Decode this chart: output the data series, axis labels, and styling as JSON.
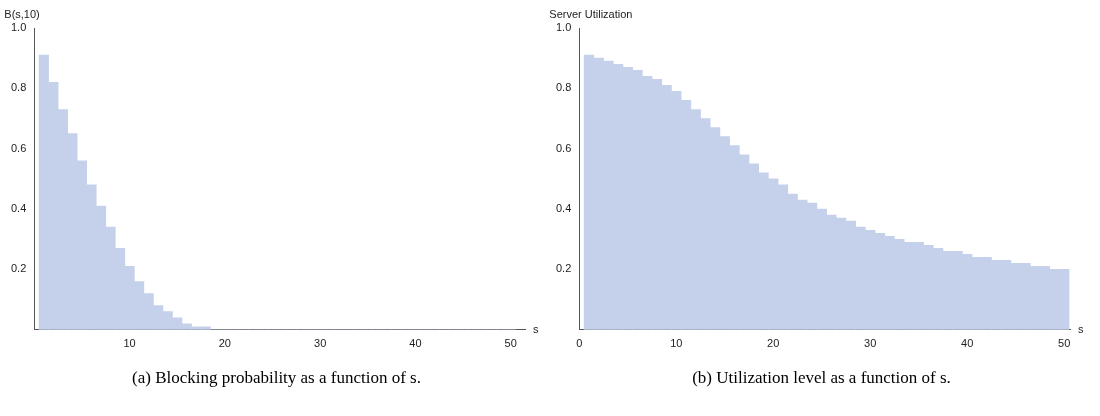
{
  "chart_data": [
    {
      "type": "histogram",
      "xlabel": "s",
      "ylabel": "B(s,10)",
      "color": "#c5d1ea",
      "grid": false,
      "legend": false,
      "bins": [
        0.5,
        1.5,
        2.5,
        3.5,
        4.5,
        5.5,
        6.5,
        7.5,
        8.5,
        9.5,
        10.5,
        11.5,
        12.5,
        13.5,
        14.5,
        15.5,
        16.5,
        17.5,
        18.5,
        19.5,
        20.5,
        21.5,
        22.5,
        23.5,
        24.5,
        25.5,
        26.5,
        27.5,
        28.5,
        29.5,
        30.5,
        31.5,
        32.5,
        33.5,
        34.5,
        35.5,
        36.5,
        37.5,
        38.5,
        39.5,
        40.5,
        41.5,
        42.5,
        43.5,
        44.5,
        45.5,
        46.5,
        47.5,
        48.5,
        49.5,
        50.5
      ],
      "values": [
        0.91,
        0.82,
        0.73,
        0.65,
        0.56,
        0.48,
        0.41,
        0.34,
        0.27,
        0.21,
        0.16,
        0.12,
        0.08,
        0.06,
        0.04,
        0.02,
        0.01,
        0.01,
        0,
        0,
        0,
        0,
        0,
        0,
        0,
        0,
        0,
        0,
        0,
        0,
        0,
        0,
        0,
        0,
        0,
        0,
        0,
        0,
        0,
        0,
        0,
        0,
        0,
        0,
        0,
        0,
        0,
        0,
        0,
        0
      ],
      "xlim": [
        0,
        51.5
      ],
      "xticks": [
        10,
        20,
        30,
        40,
        50
      ],
      "ylim": [
        0,
        1.0
      ],
      "yticks": [
        0.2,
        0.4,
        0.6,
        0.8,
        {
          "value": 1.0,
          "label": "1.0"
        }
      ],
      "annotations": [
        "(a) Blocking probability as a function of s."
      ]
    },
    {
      "type": "histogram",
      "xlabel": "s",
      "ylabel": "Server Utilization",
      "color": "#c5d1ea",
      "grid": false,
      "legend": false,
      "bins": [
        0.5,
        1.5,
        2.5,
        3.5,
        4.5,
        5.5,
        6.5,
        7.5,
        8.5,
        9.5,
        10.5,
        11.5,
        12.5,
        13.5,
        14.5,
        15.5,
        16.5,
        17.5,
        18.5,
        19.5,
        20.5,
        21.5,
        22.5,
        23.5,
        24.5,
        25.5,
        26.5,
        27.5,
        28.5,
        29.5,
        30.5,
        31.5,
        32.5,
        33.5,
        34.5,
        35.5,
        36.5,
        37.5,
        38.5,
        39.5,
        40.5,
        41.5,
        42.5,
        43.5,
        44.5,
        45.5,
        46.5,
        47.5,
        48.5,
        49.5,
        50.5
      ],
      "values": [
        0.91,
        0.9,
        0.89,
        0.88,
        0.87,
        0.86,
        0.84,
        0.83,
        0.81,
        0.79,
        0.76,
        0.73,
        0.7,
        0.67,
        0.64,
        0.61,
        0.58,
        0.55,
        0.52,
        0.5,
        0.48,
        0.45,
        0.43,
        0.42,
        0.4,
        0.38,
        0.37,
        0.36,
        0.34,
        0.33,
        0.32,
        0.31,
        0.3,
        0.29,
        0.29,
        0.28,
        0.27,
        0.26,
        0.26,
        0.25,
        0.24,
        0.24,
        0.23,
        0.23,
        0.22,
        0.22,
        0.21,
        0.21,
        0.2,
        0.2
      ],
      "xlim": [
        0,
        50.6
      ],
      "xticks": [
        0,
        10,
        20,
        30,
        40,
        50
      ],
      "ylim": [
        0,
        1.0
      ],
      "yticks": [
        0.2,
        0.4,
        0.6,
        0.8,
        {
          "value": 1.0,
          "label": "1.0"
        }
      ],
      "annotations": [
        "(b) Utilization level as a function of s."
      ]
    }
  ]
}
